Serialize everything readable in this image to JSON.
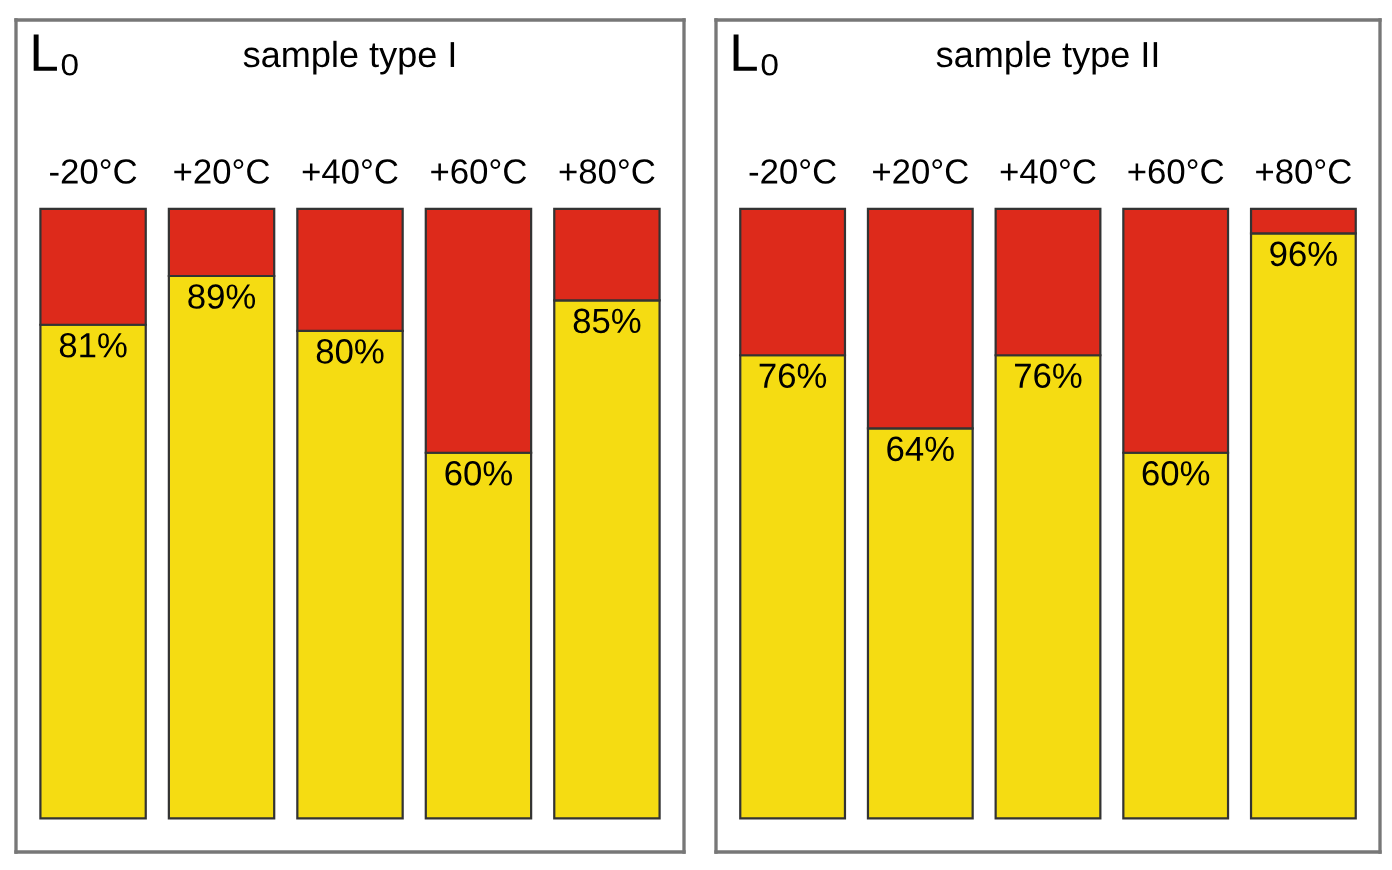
{
  "chart_data": [
    {
      "type": "bar",
      "title": "sample type I",
      "annotations": [
        "L₀"
      ],
      "stacked": true,
      "categories": [
        "-20°C",
        "+20°C",
        "+40°C",
        "+60°C",
        "+80°C"
      ],
      "series": [
        {
          "color": "#f5dc12",
          "values": [
            81,
            89,
            80,
            60,
            85
          ],
          "value_labels": [
            "81%",
            "89%",
            "80%",
            "60%",
            "85%"
          ]
        },
        {
          "color": "#dd2a1b",
          "values": [
            19,
            11,
            20,
            40,
            15
          ]
        }
      ]
    },
    {
      "type": "bar",
      "title": "sample type II",
      "annotations": [
        "L₀"
      ],
      "stacked": true,
      "categories": [
        "-20°C",
        "+20°C",
        "+40°C",
        "+60°C",
        "+80°C"
      ],
      "series": [
        {
          "color": "#f5dc12",
          "values": [
            76,
            64,
            76,
            60,
            96
          ],
          "value_labels": [
            "76%",
            "64%",
            "76%",
            "60%",
            "96%"
          ]
        },
        {
          "color": "#dd2a1b",
          "values": [
            24,
            36,
            24,
            40,
            4
          ]
        }
      ]
    }
  ]
}
